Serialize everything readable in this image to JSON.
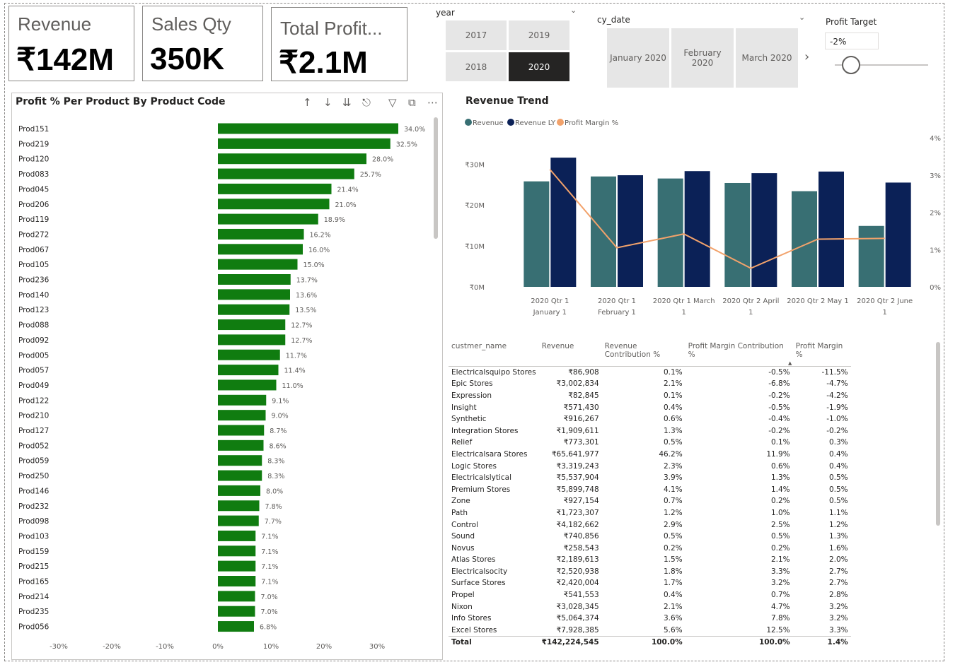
{
  "cards": [
    {
      "label": "Revenue",
      "value": "₹142M"
    },
    {
      "label": "Sales Qty",
      "value": "350K"
    },
    {
      "label": "Total Profit...",
      "value": "₹2.1M"
    }
  ],
  "year_slicer": {
    "title": "year",
    "options": [
      "2017",
      "2019",
      "2018",
      "2020"
    ],
    "selected": "2020"
  },
  "date_slicer": {
    "title": "cy_date",
    "options": [
      "January 2020",
      "February 2020",
      "March 2020"
    ],
    "next_icon": "chevron-right-icon"
  },
  "profit_target": {
    "title": "Profit Target",
    "value": "-2%"
  },
  "bar_visual": {
    "title": "Profit % Per Product  By  Product Code",
    "header_icons": [
      "arrow-up-icon",
      "arrow-down-icon",
      "double-arrow-down-icon",
      "expand-hierarchy-icon",
      "filter-icon",
      "focus-mode-icon",
      "more-options-icon"
    ]
  },
  "line_visual": {
    "title": "Revenue Trend"
  },
  "colors": {
    "bar_green": "#107c10",
    "revenue": "#386f73",
    "revenue_ly": "#0b2157",
    "profit_margin": "#f2a26b",
    "selected_tile": "#252423"
  },
  "chart_data": [
    {
      "type": "bar",
      "orientation": "horizontal",
      "title": "Profit % Per Product  By  Product Code",
      "categories": [
        "Prod151",
        "Prod219",
        "Prod120",
        "Prod083",
        "Prod045",
        "Prod206",
        "Prod119",
        "Prod272",
        "Prod067",
        "Prod105",
        "Prod236",
        "Prod140",
        "Prod123",
        "Prod088",
        "Prod092",
        "Prod005",
        "Prod057",
        "Prod049",
        "Prod122",
        "Prod210",
        "Prod127",
        "Prod052",
        "Prod059",
        "Prod250",
        "Prod146",
        "Prod232",
        "Prod098",
        "Prod103",
        "Prod159",
        "Prod215",
        "Prod165",
        "Prod214",
        "Prod235",
        "Prod056"
      ],
      "values": [
        34.0,
        32.5,
        28.0,
        25.7,
        21.4,
        21.0,
        18.9,
        16.2,
        16.0,
        15.0,
        13.7,
        13.6,
        13.5,
        12.7,
        12.7,
        11.7,
        11.4,
        11.0,
        9.1,
        9.0,
        8.7,
        8.6,
        8.3,
        8.3,
        8.0,
        7.8,
        7.7,
        7.1,
        7.1,
        7.1,
        7.1,
        7.0,
        7.0,
        6.8
      ],
      "data_labels": [
        "34.0%",
        "32.5%",
        "28.0%",
        "25.7%",
        "21.4%",
        "21.0%",
        "18.9%",
        "16.2%",
        "16.0%",
        "15.0%",
        "13.7%",
        "13.6%",
        "13.5%",
        "12.7%",
        "12.7%",
        "11.7%",
        "11.4%",
        "11.0%",
        "9.1%",
        "9.0%",
        "8.7%",
        "8.6%",
        "8.3%",
        "8.3%",
        "8.0%",
        "7.8%",
        "7.7%",
        "7.1%",
        "7.1%",
        "7.1%",
        "7.1%",
        "7.0%",
        "7.0%",
        "6.8%"
      ],
      "xlim": [
        -30,
        35
      ],
      "x_ticks": [
        "-30%",
        "-20%",
        "-10%",
        "0%",
        "10%",
        "20%",
        "30%"
      ],
      "x_tick_values": [
        -30,
        -20,
        -10,
        0,
        10,
        20,
        30
      ]
    },
    {
      "type": "bar+line",
      "title": "Revenue Trend",
      "categories": [
        [
          "2020 Qtr 1",
          "January 1"
        ],
        [
          "2020 Qtr 1",
          "February 1"
        ],
        [
          "2020 Qtr 1 March",
          "1"
        ],
        [
          "2020 Qtr 2 April",
          "1"
        ],
        [
          "2020 Qtr 2 May 1",
          ""
        ],
        [
          "2020 Qtr 2 June",
          "1"
        ]
      ],
      "series": [
        {
          "name": "Revenue",
          "kind": "bar",
          "axis": "left",
          "values": [
            25.8,
            27.0,
            26.5,
            25.4,
            23.4,
            14.9
          ]
        },
        {
          "name": "Revenue LY",
          "kind": "bar",
          "axis": "left",
          "values": [
            31.6,
            27.3,
            28.3,
            27.8,
            28.2,
            25.5
          ]
        },
        {
          "name": "Profit Margin %",
          "kind": "line",
          "axis": "right",
          "values": [
            3.15,
            1.05,
            1.42,
            0.5,
            1.28,
            1.3
          ]
        }
      ],
      "ylim_left": [
        0,
        33
      ],
      "left_ticks": [
        "₹0M",
        "₹10M",
        "₹20M",
        "₹30M"
      ],
      "left_tick_values": [
        0,
        10,
        20,
        30
      ],
      "ylim_right": [
        0,
        4
      ],
      "right_ticks": [
        "0%",
        "1%",
        "2%",
        "3%",
        "4%"
      ],
      "right_tick_values": [
        0,
        1,
        2,
        3,
        4
      ],
      "legend": "top-left"
    }
  ],
  "table": {
    "columns": [
      "custmer_name",
      "Revenue",
      "Revenue Contribution %",
      "Profit Margin Contribution %",
      "Profit Margin %"
    ],
    "sort_icon": "sort-ascending-icon",
    "rows": [
      [
        "Electricalsquipo Stores",
        "₹86,908",
        "0.1%",
        "-0.5%",
        "-11.5%"
      ],
      [
        "Epic Stores",
        "₹3,002,834",
        "2.1%",
        "-6.8%",
        "-4.7%"
      ],
      [
        "Expression",
        "₹82,845",
        "0.1%",
        "-0.2%",
        "-4.2%"
      ],
      [
        "Insight",
        "₹571,430",
        "0.4%",
        "-0.5%",
        "-1.9%"
      ],
      [
        "Synthetic",
        "₹916,267",
        "0.6%",
        "-0.4%",
        "-1.0%"
      ],
      [
        "Integration Stores",
        "₹1,909,611",
        "1.3%",
        "-0.2%",
        "-0.2%"
      ],
      [
        "Relief",
        "₹773,301",
        "0.5%",
        "0.1%",
        "0.3%"
      ],
      [
        "Electricalsara Stores",
        "₹65,641,977",
        "46.2%",
        "11.9%",
        "0.4%"
      ],
      [
        "Logic Stores",
        "₹3,319,243",
        "2.3%",
        "0.6%",
        "0.4%"
      ],
      [
        "Electricalslytical",
        "₹5,537,904",
        "3.9%",
        "1.3%",
        "0.5%"
      ],
      [
        "Premium Stores",
        "₹5,899,748",
        "4.1%",
        "1.4%",
        "0.5%"
      ],
      [
        "Zone",
        "₹927,154",
        "0.7%",
        "0.2%",
        "0.5%"
      ],
      [
        "Path",
        "₹1,723,307",
        "1.2%",
        "1.0%",
        "1.1%"
      ],
      [
        "Control",
        "₹4,182,662",
        "2.9%",
        "2.5%",
        "1.2%"
      ],
      [
        "Sound",
        "₹740,856",
        "0.5%",
        "0.5%",
        "1.3%"
      ],
      [
        "Novus",
        "₹258,543",
        "0.2%",
        "0.2%",
        "1.6%"
      ],
      [
        "Atlas Stores",
        "₹2,189,613",
        "1.5%",
        "2.1%",
        "2.0%"
      ],
      [
        "Electricalsocity",
        "₹2,520,938",
        "1.8%",
        "3.3%",
        "2.7%"
      ],
      [
        "Surface Stores",
        "₹2,420,004",
        "1.7%",
        "3.2%",
        "2.7%"
      ],
      [
        "Propel",
        "₹541,553",
        "0.4%",
        "0.7%",
        "2.8%"
      ],
      [
        "Nixon",
        "₹3,028,345",
        "2.1%",
        "4.7%",
        "3.2%"
      ],
      [
        "Info Stores",
        "₹5,064,374",
        "3.6%",
        "7.8%",
        "3.2%"
      ],
      [
        "Excel Stores",
        "₹7,928,385",
        "5.6%",
        "12.5%",
        "3.3%"
      ]
    ],
    "total": [
      "Total",
      "₹142,224,545",
      "100.0%",
      "100.0%",
      "1.4%"
    ]
  }
}
